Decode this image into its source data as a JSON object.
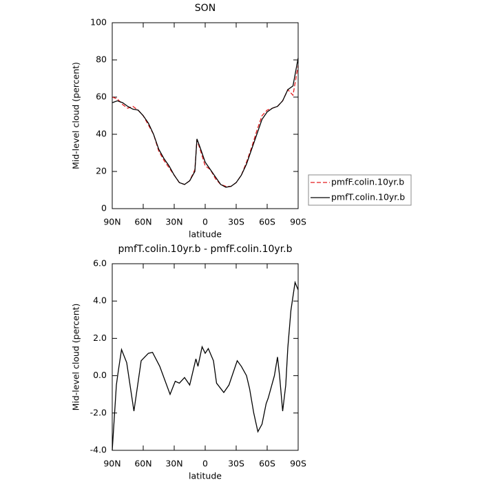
{
  "chart_data": [
    {
      "type": "line",
      "title": "SON",
      "xlabel": "latitude",
      "ylabel": "Mid-level cloud (percent)",
      "x": [
        90,
        85,
        80,
        75,
        70,
        65,
        60,
        55,
        50,
        45,
        40,
        35,
        30,
        25,
        20,
        15,
        10,
        8,
        5,
        0,
        -5,
        -10,
        -15,
        -20,
        -25,
        -30,
        -35,
        -40,
        -45,
        -50,
        -55,
        -60,
        -65,
        -70,
        -75,
        -80,
        -85,
        -90
      ],
      "series": [
        {
          "name": "pmfF.colin.10yr.b",
          "color": "#e41a1c",
          "dash": true,
          "values": [
            60,
            59,
            56,
            54,
            55,
            53,
            50,
            45,
            40,
            31,
            26,
            22,
            18,
            14,
            13,
            15,
            21,
            37,
            32,
            23,
            21,
            16,
            13,
            12,
            12,
            14,
            18,
            25,
            33,
            42,
            50,
            53,
            54,
            55,
            58,
            64,
            61,
            77
          ]
        },
        {
          "name": "pmfT.colin.10yr.b",
          "color": "#000000",
          "dash": false,
          "values": [
            57,
            58,
            57,
            55,
            53.5,
            53,
            50,
            46,
            40,
            32,
            27,
            23,
            18,
            14,
            13,
            15,
            20,
            37.5,
            33,
            25,
            21,
            17,
            13,
            11.5,
            12,
            14,
            18,
            24,
            32,
            40,
            48,
            52,
            54,
            55,
            58,
            64,
            66,
            81
          ]
        }
      ],
      "xlim": [
        90,
        -90
      ],
      "xticks": [
        {
          "value": 90,
          "label": "90N"
        },
        {
          "value": 60,
          "label": "60N"
        },
        {
          "value": 30,
          "label": "30N"
        },
        0,
        {
          "value": -30,
          "label": "30S"
        },
        {
          "value": -60,
          "label": "60S"
        },
        {
          "value": -90,
          "label": "90S"
        }
      ],
      "ylim": [
        0,
        100
      ],
      "yticks": [
        0,
        20,
        40,
        60,
        80,
        100
      ],
      "legend": "right"
    },
    {
      "type": "line",
      "title": "pmfT.colin.10yr.b - pmfF.colin.10yr.b",
      "xlabel": "latitude",
      "ylabel": "Mid-level cloud (percent)",
      "x": [
        90,
        86,
        84,
        81,
        76,
        69,
        62,
        55,
        51,
        44,
        34,
        29,
        25,
        20,
        15,
        9,
        7,
        3,
        0,
        -3,
        -8,
        -11,
        -18,
        -23,
        -31,
        -35,
        -40,
        -43,
        -47,
        -51,
        -55,
        -59,
        -61,
        -67,
        -70,
        -72,
        -75,
        -78,
        -80,
        -83,
        -87,
        -90
      ],
      "series": [
        {
          "color": "#000000",
          "dash": false,
          "values": [
            -4,
            -0.5,
            0.3,
            1.4,
            0.7,
            -1.9,
            0.8,
            1.2,
            1.25,
            0.5,
            -1.0,
            -0.3,
            -0.4,
            -0.1,
            -0.5,
            0.9,
            0.5,
            1.55,
            1.2,
            1.45,
            0.8,
            -0.4,
            -0.9,
            -0.5,
            0.8,
            0.5,
            0,
            -0.7,
            -2.0,
            -3.0,
            -2.6,
            -1.5,
            -1.2,
            0,
            1.0,
            0,
            -1.9,
            -0.5,
            1.5,
            3.5,
            5.0,
            4.6
          ]
        }
      ],
      "xlim": [
        90,
        -90
      ],
      "xticks": [
        {
          "value": 90,
          "label": "90N"
        },
        {
          "value": 60,
          "label": "60N"
        },
        {
          "value": 30,
          "label": "30N"
        },
        0,
        {
          "value": -30,
          "label": "30S"
        },
        {
          "value": -60,
          "label": "60S"
        },
        {
          "value": -90,
          "label": "90S"
        }
      ],
      "ylim": [
        -4,
        6
      ],
      "yticks": [
        {
          "value": -4,
          "label": "-4.0"
        },
        {
          "value": -2,
          "label": "-2.0"
        },
        {
          "value": 0,
          "label": "0.0"
        },
        {
          "value": 2,
          "label": "2.0"
        },
        {
          "value": 4,
          "label": "4.0"
        },
        {
          "value": 6,
          "label": "6.0"
        }
      ]
    }
  ]
}
